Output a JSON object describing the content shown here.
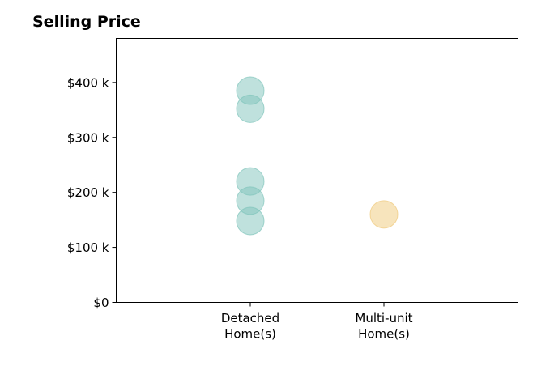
{
  "chart_data": {
    "type": "scatter",
    "title": "Selling Price",
    "xlabel": "",
    "ylabel": "",
    "categories": [
      "Detached Home(s)",
      "Multi-unit Home(s)"
    ],
    "category_labels": [
      [
        "Detached",
        "Home(s)"
      ],
      [
        "Multi-unit",
        "Home(s)"
      ]
    ],
    "ylim": [
      0,
      480000
    ],
    "yticks": [
      0,
      100000,
      200000,
      300000,
      400000
    ],
    "ytick_labels": [
      "$0",
      "$100 k",
      "$200 k",
      "$300 k",
      "$400 k"
    ],
    "grid": false,
    "series": [
      {
        "category": "Detached Home(s)",
        "color": "#7fc4bb",
        "values": [
          385000,
          352000,
          220000,
          185000,
          148000
        ]
      },
      {
        "category": "Multi-unit Home(s)",
        "color": "#f0c97a",
        "values": [
          160000
        ]
      }
    ]
  }
}
